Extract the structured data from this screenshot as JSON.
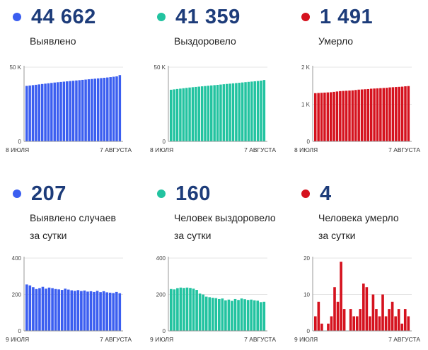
{
  "panels": [
    {
      "value": "44 662",
      "label_lines": [
        "Выявлено"
      ],
      "color": "#3b5ef0",
      "chart_data": {
        "type": "bar",
        "ylim": [
          0,
          50000
        ],
        "yticks": [
          {
            "value": 0,
            "label": "0"
          },
          {
            "value": 50000,
            "label": "50 K"
          }
        ],
        "x_start_label": "8 ИЮЛЯ",
        "x_end_label": "7 АВГУСТА",
        "values": [
          37400,
          37650,
          37900,
          38150,
          38400,
          38650,
          38900,
          39150,
          39400,
          39650,
          39850,
          40050,
          40250,
          40450,
          40650,
          40850,
          41050,
          41250,
          41450,
          41650,
          41850,
          42050,
          42250,
          42450,
          42650,
          42850,
          43050,
          43300,
          43550,
          43800,
          44662
        ]
      }
    },
    {
      "value": "41 359",
      "label_lines": [
        "Выздоровело"
      ],
      "color": "#22c3a0",
      "chart_data": {
        "type": "bar",
        "ylim": [
          0,
          50000
        ],
        "yticks": [
          {
            "value": 0,
            "label": "0"
          },
          {
            "value": 50000,
            "label": "50 K"
          }
        ],
        "x_start_label": "8 ИЮЛЯ",
        "x_end_label": "7 АВГУСТА",
        "values": [
          34800,
          35050,
          35300,
          35550,
          35800,
          36050,
          36300,
          36500,
          36700,
          36900,
          37100,
          37300,
          37500,
          37700,
          37900,
          38100,
          38300,
          38500,
          38700,
          38900,
          39100,
          39300,
          39500,
          39700,
          39900,
          40100,
          40300,
          40500,
          40700,
          40950,
          41359
        ]
      }
    },
    {
      "value": "1 491",
      "label_lines": [
        "Умерло"
      ],
      "color": "#d5121e",
      "chart_data": {
        "type": "bar",
        "ylim": [
          0,
          2000
        ],
        "yticks": [
          {
            "value": 0,
            "label": "0"
          },
          {
            "value": 1000,
            "label": "1 K"
          },
          {
            "value": 2000,
            "label": "2 K"
          }
        ],
        "x_start_label": "8 ИЮЛЯ",
        "x_end_label": "7 АВГУСТА",
        "values": [
          1300,
          1305,
          1310,
          1315,
          1320,
          1325,
          1335,
          1345,
          1355,
          1360,
          1365,
          1370,
          1375,
          1385,
          1395,
          1400,
          1405,
          1410,
          1420,
          1425,
          1430,
          1435,
          1440,
          1445,
          1455,
          1460,
          1465,
          1470,
          1475,
          1485,
          1491
        ]
      }
    },
    {
      "value": "207",
      "label_lines": [
        "Выявлено случаев",
        "за сутки"
      ],
      "color": "#3b5ef0",
      "chart_data": {
        "type": "bar",
        "ylim": [
          0,
          400
        ],
        "yticks": [
          {
            "value": 0,
            "label": "0"
          },
          {
            "value": 200,
            "label": "200"
          },
          {
            "value": 400,
            "label": "400"
          }
        ],
        "x_start_label": "9 ИЮЛЯ",
        "x_end_label": "7 АВГУСТА",
        "values": [
          255,
          250,
          240,
          230,
          235,
          242,
          232,
          238,
          235,
          230,
          228,
          225,
          232,
          227,
          223,
          220,
          224,
          219,
          222,
          216,
          218,
          214,
          220,
          213,
          218,
          212,
          210,
          208,
          214,
          207
        ]
      }
    },
    {
      "value": "160",
      "label_lines": [
        "Человек выздоровело",
        "за сутки"
      ],
      "color": "#22c3a0",
      "chart_data": {
        "type": "bar",
        "ylim": [
          0,
          400
        ],
        "yticks": [
          {
            "value": 0,
            "label": "0"
          },
          {
            "value": 200,
            "label": "200"
          },
          {
            "value": 400,
            "label": "400"
          }
        ],
        "x_start_label": "9 ИЮЛЯ",
        "x_end_label": "7 АВГУСТА",
        "values": [
          230,
          228,
          235,
          238,
          236,
          238,
          236,
          232,
          225,
          205,
          200,
          188,
          185,
          182,
          180,
          175,
          178,
          168,
          172,
          165,
          175,
          170,
          178,
          174,
          170,
          172,
          168,
          166,
          158,
          160
        ]
      }
    },
    {
      "value": "4",
      "label_lines": [
        "Человека умерло",
        "за сутки"
      ],
      "color": "#d5121e",
      "chart_data": {
        "type": "bar",
        "ylim": [
          0,
          20
        ],
        "yticks": [
          {
            "value": 0,
            "label": "0"
          },
          {
            "value": 10,
            "label": "10"
          },
          {
            "value": 20,
            "label": "20"
          }
        ],
        "x_start_label": "9 ИЮЛЯ",
        "x_end_label": "7 АВГУСТА",
        "values": [
          4,
          8,
          2,
          0,
          2,
          4,
          12,
          8,
          19,
          6,
          0,
          6,
          4,
          4,
          6,
          13,
          12,
          4,
          10,
          6,
          4,
          10,
          4,
          6,
          8,
          4,
          6,
          2,
          6,
          4
        ]
      }
    }
  ]
}
